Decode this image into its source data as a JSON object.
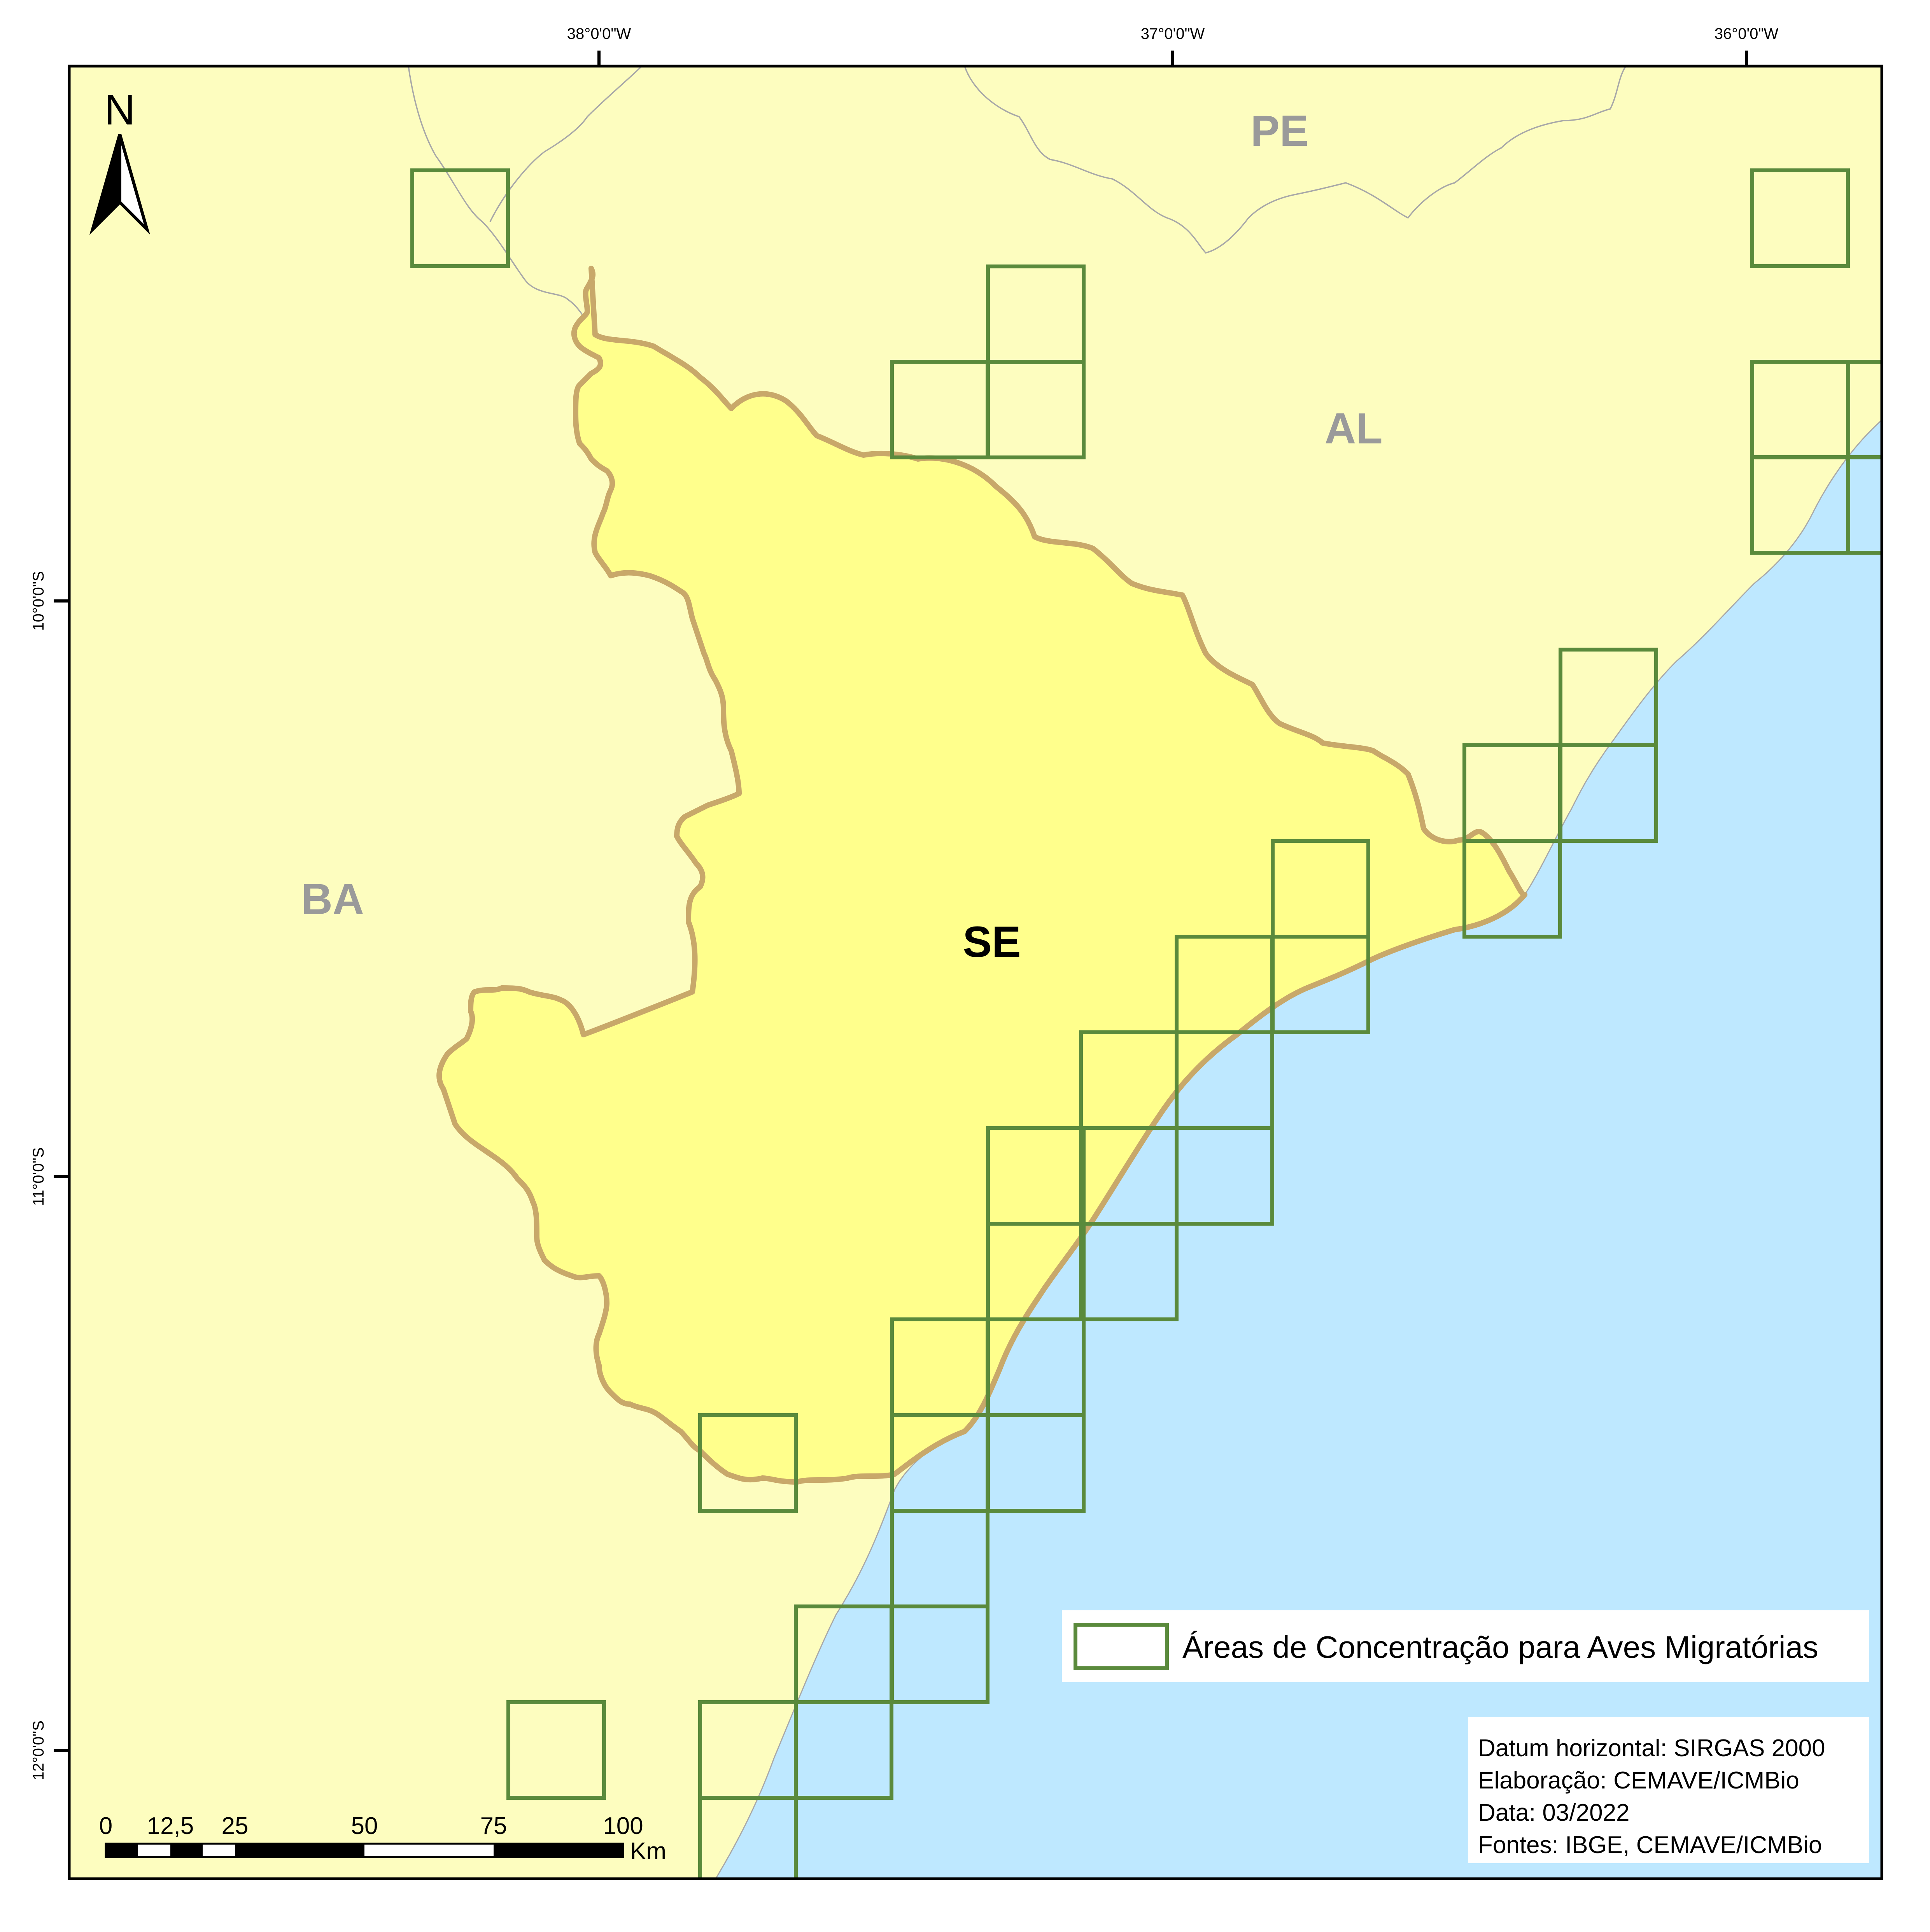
{
  "colors": {
    "neighbor_fill": "#fdfdbf",
    "se_fill": "#ffff8c",
    "se_border": "#c8a86a",
    "sea": "#bee8ff",
    "grid_stroke": "#5a8a3c",
    "frame": "#000000",
    "label_gray": "#9a9a9a"
  },
  "labels": {
    "north": "N",
    "pe": "PE",
    "al": "AL",
    "ba": "BA",
    "se": "SE"
  },
  "graticule": {
    "lon": [
      "38°0'0\"W",
      "37°0'0\"W",
      "36°0'0\"W"
    ],
    "lat": [
      "10°0'0\"S",
      "11°0'0\"S",
      "12°0'0\"S"
    ]
  },
  "scale_bar": {
    "ticks": [
      "0",
      "12,5",
      "25",
      "50",
      "75",
      "100"
    ],
    "unit": "Km"
  },
  "legend": {
    "item_label": "Áreas de Concentração para Aves Migratórias",
    "icon": "green-square-outline-icon"
  },
  "credits": [
    "Datum horizontal: SIRGAS 2000",
    "Elaboração: CEMAVE/ICMBio",
    "Data: 03/2022",
    "Fontes: IBGE, CEMAVE/ICMBio"
  ]
}
